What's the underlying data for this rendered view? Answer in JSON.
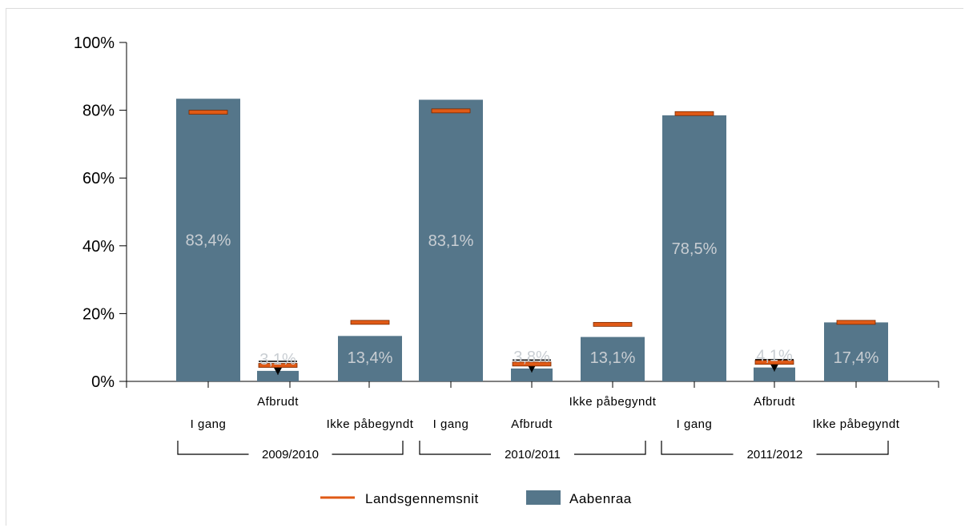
{
  "chart_data": {
    "type": "bar",
    "yticks": [
      "0%",
      "20%",
      "40%",
      "60%",
      "80%",
      "100%"
    ],
    "ylim": [
      0,
      100
    ],
    "groups": [
      {
        "label": "2009/2010",
        "categories": [
          "I gang",
          "Afbrudt",
          "Ikke påbegyndt"
        ]
      },
      {
        "label": "2010/2011",
        "categories": [
          "I gang",
          "Afbrudt",
          "Ikke påbegyndt"
        ]
      },
      {
        "label": "2011/2012",
        "categories": [
          "I gang",
          "Afbrudt",
          "Ikke påbegyndt"
        ]
      }
    ],
    "series": [
      {
        "name": "Aabenraa",
        "kind": "bar",
        "color": "#55768a",
        "values": [
          83.4,
          3.1,
          13.4,
          83.1,
          3.8,
          13.1,
          78.5,
          4.1,
          17.4
        ],
        "labels": [
          "83,4%",
          "3,1%",
          "13,4%",
          "83,1%",
          "3,8%",
          "13,1%",
          "78,5%",
          "4,1%",
          "17,4%"
        ]
      },
      {
        "name": "Landsgennemsnit",
        "kind": "marker",
        "color": "#e05a16",
        "values": [
          79.3,
          4.6,
          17.3,
          79.7,
          5.0,
          16.7,
          78.9,
          5.5,
          17.3
        ]
      }
    ],
    "errorbars": [
      {
        "index": 1,
        "low": 3.1,
        "high": 5.9
      },
      {
        "index": 4,
        "low": 3.8,
        "high": 6.3
      },
      {
        "index": 7,
        "low": 4.1,
        "high": 6.4
      }
    ],
    "legend": {
      "position": "bottom"
    }
  }
}
